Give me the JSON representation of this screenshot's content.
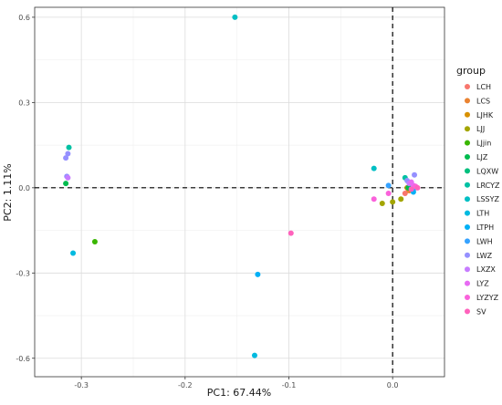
{
  "chart_data": {
    "type": "scatter",
    "xlabel": "PC1: 67.44%",
    "ylabel": "PC2: 1.11%",
    "xlim": [
      -0.345,
      0.05
    ],
    "ylim": [
      -0.665,
      0.635
    ],
    "x_ticks": [
      {
        "value": -0.3,
        "label": "-0.3"
      },
      {
        "value": -0.2,
        "label": "-0.2"
      },
      {
        "value": -0.1,
        "label": "-0.1"
      },
      {
        "value": 0.0,
        "label": "0.0"
      }
    ],
    "y_ticks": [
      {
        "value": -0.6,
        "label": "-0.6"
      },
      {
        "value": -0.3,
        "label": "-0.3"
      },
      {
        "value": 0.0,
        "label": "0.0"
      },
      {
        "value": 0.3,
        "label": "0.3"
      },
      {
        "value": 0.6,
        "label": "0.6"
      }
    ],
    "grid": true,
    "reference_lines": {
      "x": 0,
      "y": 0,
      "style": "dashed"
    },
    "legend": {
      "title": "group",
      "placement": "right"
    },
    "groups": [
      {
        "name": "LCH",
        "color": "#F8766D",
        "points": [
          [
            0.012,
            -0.02
          ],
          [
            0.015,
            -0.005
          ]
        ]
      },
      {
        "name": "LCS",
        "color": "#EA8331",
        "points": [
          [
            0.016,
            -0.01
          ]
        ]
      },
      {
        "name": "LJHK",
        "color": "#D89000",
        "points": [
          [
            0.014,
            0.0
          ]
        ]
      },
      {
        "name": "LJJ",
        "color": "#A3A500",
        "points": [
          [
            -0.01,
            -0.055
          ],
          [
            0.0,
            -0.05
          ],
          [
            0.008,
            -0.04
          ]
        ]
      },
      {
        "name": "LJjin",
        "color": "#39B600",
        "points": [
          [
            -0.287,
            -0.19
          ]
        ]
      },
      {
        "name": "LJZ",
        "color": "#00BB4E",
        "points": [
          [
            -0.315,
            0.015
          ],
          [
            0.015,
            0.0
          ]
        ]
      },
      {
        "name": "LQXW",
        "color": "#00BF7D",
        "points": [
          [
            0.018,
            0.005
          ]
        ]
      },
      {
        "name": "LRCYZ",
        "color": "#00C1A3",
        "points": [
          [
            -0.312,
            0.142
          ],
          [
            0.012,
            0.035
          ]
        ]
      },
      {
        "name": "LSSYZ",
        "color": "#00BFC4",
        "points": [
          [
            -0.152,
            0.6
          ],
          [
            -0.018,
            0.068
          ]
        ]
      },
      {
        "name": "LTH",
        "color": "#00BAE0",
        "points": [
          [
            -0.308,
            -0.23
          ],
          [
            -0.133,
            -0.59
          ]
        ]
      },
      {
        "name": "LTPH",
        "color": "#00B0F6",
        "points": [
          [
            -0.13,
            -0.305
          ],
          [
            0.02,
            -0.015
          ]
        ]
      },
      {
        "name": "LWH",
        "color": "#35A2FF",
        "points": [
          [
            -0.004,
            0.008
          ],
          [
            0.022,
            0.0
          ]
        ]
      },
      {
        "name": "LWZ",
        "color": "#9590FF",
        "points": [
          [
            -0.313,
            0.12
          ],
          [
            -0.315,
            0.105
          ],
          [
            -0.314,
            0.04
          ],
          [
            0.014,
            0.025
          ],
          [
            0.021,
            0.045
          ]
        ]
      },
      {
        "name": "LXZX",
        "color": "#C77CFF",
        "points": [
          [
            -0.313,
            0.035
          ],
          [
            0.016,
            0.015
          ]
        ]
      },
      {
        "name": "LYZ",
        "color": "#E76BF3",
        "points": [
          [
            0.018,
            0.02
          ],
          [
            0.02,
            0.008
          ]
        ]
      },
      {
        "name": "LYZYZ",
        "color": "#FA62DB",
        "points": [
          [
            -0.018,
            -0.04
          ],
          [
            -0.004,
            -0.02
          ],
          [
            0.022,
            0.005
          ]
        ]
      },
      {
        "name": "SV",
        "color": "#FF62BC",
        "points": [
          [
            -0.098,
            -0.16
          ],
          [
            0.018,
            -0.005
          ],
          [
            0.024,
            0.0
          ]
        ]
      }
    ]
  }
}
